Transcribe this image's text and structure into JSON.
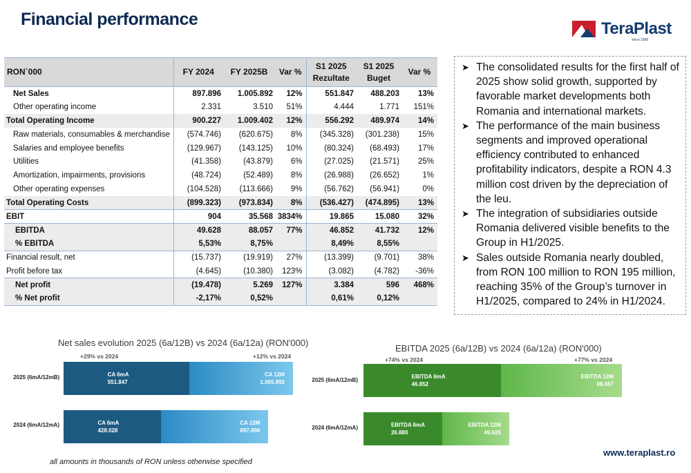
{
  "page": {
    "title": "Financial performance"
  },
  "logo": {
    "name": "TeraPlast",
    "since": "since 1896"
  },
  "table": {
    "headers": [
      {
        "l1": "RON`000",
        "l2": ""
      },
      {
        "l1": "FY 2024",
        "l2": ""
      },
      {
        "l1": "FY 2025B",
        "l2": ""
      },
      {
        "l1": "Var %",
        "l2": ""
      },
      {
        "l1": "S1 2025",
        "l2": "Rezultate"
      },
      {
        "l1": "S1 2025",
        "l2": "Buget"
      },
      {
        "l1": "Var %",
        "l2": ""
      }
    ],
    "rows": [
      {
        "label": "Net Sales",
        "fy24": "897.896",
        "fy25b": "1.005.892",
        "var1": "12%",
        "s1r": "551.847",
        "s1b": "488.203",
        "var2": "13%"
      },
      {
        "label": "Other operating income",
        "fy24": "2.331",
        "fy25b": "3.510",
        "var1": "51%",
        "s1r": "4.444",
        "s1b": "1.771",
        "var2": "151%"
      },
      {
        "label": "Total Operating Income",
        "fy24": "900.227",
        "fy25b": "1.009.402",
        "var1": "12%",
        "s1r": "556.292",
        "s1b": "489.974",
        "var2": "14%"
      },
      {
        "label": "Raw materials, consumables & merchandise",
        "fy24": "(574.746)",
        "fy25b": "(620.675)",
        "var1": "8%",
        "s1r": "(345.328)",
        "s1b": "(301.238)",
        "var2": "15%"
      },
      {
        "label": "Salaries and employee benefits",
        "fy24": "(129.967)",
        "fy25b": "(143.125)",
        "var1": "10%",
        "s1r": "(80.324)",
        "s1b": "(68.493)",
        "var2": "17%"
      },
      {
        "label": "Utilities",
        "fy24": "(41.358)",
        "fy25b": "(43.879)",
        "var1": "6%",
        "s1r": "(27.025)",
        "s1b": "(21.571)",
        "var2": "25%"
      },
      {
        "label": "Amortization, impairments, provisions",
        "fy24": "(48.724)",
        "fy25b": "(52.489)",
        "var1": "8%",
        "s1r": "(26.988)",
        "s1b": "(26.652)",
        "var2": "1%"
      },
      {
        "label": "Other operating expenses",
        "fy24": "(104.528)",
        "fy25b": "(113.666)",
        "var1": "9%",
        "s1r": "(56.762)",
        "s1b": "(56.941)",
        "var2": "0%"
      },
      {
        "label": "Total Operating Costs",
        "fy24": "(899.323)",
        "fy25b": "(973.834)",
        "var1": "8%",
        "s1r": "(536.427)",
        "s1b": "(474.895)",
        "var2": "13%"
      },
      {
        "label": "EBIT",
        "fy24": "904",
        "fy25b": "35.568",
        "var1": "3834%",
        "s1r": "19.865",
        "s1b": "15.080",
        "var2": "32%"
      },
      {
        "label": "EBITDA",
        "fy24": "49.628",
        "fy25b": "88.057",
        "var1": "77%",
        "s1r": "46.852",
        "s1b": "41.732",
        "var2": "12%"
      },
      {
        "label": "% EBITDA",
        "fy24": "5,53%",
        "fy25b": "8,75%",
        "var1": "",
        "s1r": "8,49%",
        "s1b": "8,55%",
        "var2": ""
      },
      {
        "label": "Financial result, net",
        "fy24": "(15.737)",
        "fy25b": "(19.919)",
        "var1": "27%",
        "s1r": "(13.399)",
        "s1b": "(9.701)",
        "var2": "38%"
      },
      {
        "label": "Profit before tax",
        "fy24": "(4.645)",
        "fy25b": "(10.380)",
        "var1": "123%",
        "s1r": "(3.082)",
        "s1b": "(4.782)",
        "var2": "-36%"
      },
      {
        "label": "Net profit",
        "fy24": "(19.478)",
        "fy25b": "5.269",
        "var1": "127%",
        "s1r": "3.384",
        "s1b": "596",
        "var2": "468%"
      },
      {
        "label": "% Net profit",
        "fy24": "-2,17%",
        "fy25b": "0,52%",
        "var1": "",
        "s1r": "0,61%",
        "s1b": "0,12%",
        "var2": ""
      }
    ]
  },
  "notes": [
    "The consolidated results for the first half of 2025 show solid growth, supported by favorable market developments both Romania and international markets.",
    "The performance of the main business segments and improved operational efficiency contributed to enhanced profitability indicators, despite a RON 4.3 million cost driven by the depreciation of the leu.",
    "The integration of subsidiaries outside Romania delivered visible benefits to the Group in H1/2025.",
    "Sales outside Romania nearly doubled, from RON 100 million to RON 195 million, reaching 35% of the Group’s turnover in H1/2025, compared to 24% in H1/2024."
  ],
  "chart_data": [
    {
      "type": "bar",
      "title": "Net sales evolution 2025 (6a/12B) vs 2024 (6a/12a) (RON'000)",
      "categories": [
        "2025 (6mA/12mB)",
        "2024 (6mA/12mA)"
      ],
      "series": [
        {
          "name": "CA 6mA",
          "values": [
            551.847,
            428.028
          ],
          "labels": [
            "551.847",
            "428.028"
          ]
        },
        {
          "name": "CA 12M",
          "values": [
            1005.892,
            897.896
          ],
          "labels": [
            "1.005.892",
            "897.896"
          ]
        }
      ],
      "annotations": [
        "+29% vs 2024",
        "+12% vs 2024"
      ],
      "colors": {
        "s6": "#1d5a82",
        "s12a": "#2b8bc4",
        "s12b": "#7cc7ec"
      }
    },
    {
      "type": "bar",
      "title": "EBITDA 2025 (6a/12B) vs 2024 (6a/12a) (RON'000)",
      "categories": [
        "2025 (6mA/12mB)",
        "2024 (6mA/12mA)"
      ],
      "series": [
        {
          "name": "EBITDA 6mA",
          "values": [
            46.852,
            26.88
          ],
          "labels": [
            "46.852",
            "26.880"
          ]
        },
        {
          "name": "EBITDA 12M",
          "values": [
            88.057,
            49.628
          ],
          "labels": [
            "88.057",
            "49.628"
          ]
        }
      ],
      "annotations": [
        "+74% vs 2024",
        "+77% vs 2024"
      ],
      "colors": {
        "s6": "#3a8a2c",
        "s12a": "#5fb64a",
        "s12b": "#a6dc8c"
      }
    }
  ],
  "footer": {
    "note": "all amounts in thousands of RON unless otherwise specified",
    "website": "www.teraplast.ro"
  }
}
